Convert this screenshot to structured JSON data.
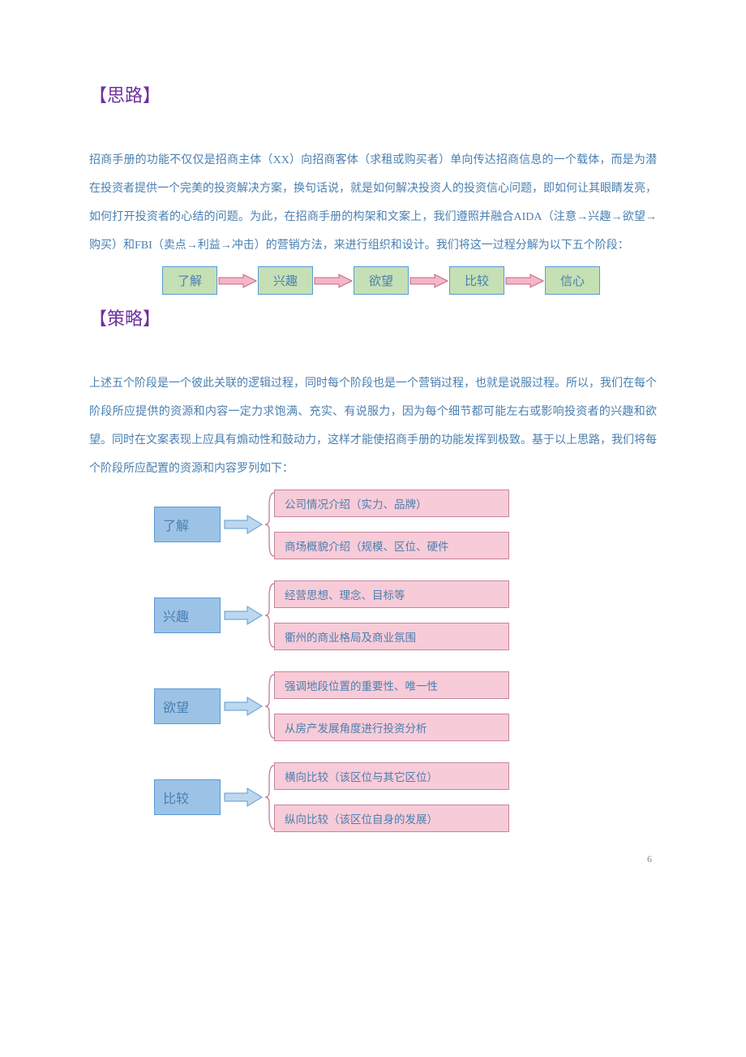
{
  "colors": {
    "heading": "#7030a0",
    "body_text": "#4a7fb0",
    "green_box_fill": "#c5e0b4",
    "green_box_border": "#5b9bd5",
    "blue_box_fill": "#9cc3e6",
    "blue_box_border": "#5b9bd5",
    "pink_box_fill": "#f8cbd8",
    "pink_box_border": "#c5859b",
    "flow_arrow_outline": "#c8647e",
    "flow_arrow_fill": "#f4b6c8",
    "stage_arrow_outline": "#5b9bd5",
    "stage_arrow_fill": "#bdd7ee",
    "bracket": "#c5859b"
  },
  "fonts": {
    "heading_family": "KaiTi",
    "body_family": "SimSun",
    "heading_size_pt": 16,
    "body_size_pt": 10.5
  },
  "section1": {
    "heading": "【思路】",
    "paragraph": "招商手册的功能不仅仅是招商主体（XX）向招商客体（求租或购买者）单向传达招商信息的一个载体，而是为潜在投资者提供一个完美的投资解决方案，换句话说，就是如何解决投资人的投资信心问题，即如何让其眼睛发亮，如何打开投资者的心结的问题。为此，在招商手册的构架和文案上，我们遵照并融合AIDA（注意→兴趣→欲望→购买）和FBI（卖点→利益→冲击）的营销方法，来进行组织和设计。我们将这一过程分解为以下五个阶段："
  },
  "flow": {
    "type": "flowchart",
    "boxes": [
      "了解",
      "兴趣",
      "欲望",
      "比较",
      "信心"
    ]
  },
  "section2": {
    "heading": "【策略】",
    "paragraph": "上述五个阶段是一个彼此关联的逻辑过程，同时每个阶段也是一个营销过程，也就是说服过程。所以，我们在每个阶段所应提供的资源和内容一定力求饱满、充实、有说服力，因为每个细节都可能左右或影响投资者的兴趣和欲望。同时在文案表现上应具有煽动性和鼓动力，这样才能使招商手册的功能发挥到极致。基于以上思路，我们将每个阶段所应配置的资源和内容罗列如下："
  },
  "stages": {
    "type": "tree",
    "items": [
      {
        "label": "了解",
        "details": [
          "公司情况介绍（实力、品牌）",
          "商场概貌介绍（规模、区位、硬件"
        ]
      },
      {
        "label": "兴趣",
        "details": [
          "经营思想、理念、目标等",
          "衢州的商业格局及商业氛围"
        ]
      },
      {
        "label": "欲望",
        "details": [
          "强调地段位置的重要性、唯一性",
          "从房产发展角度进行投资分析"
        ]
      },
      {
        "label": "比较",
        "details": [
          "横向比较（该区位与其它区位）",
          "纵向比较（该区位自身的发展）"
        ]
      }
    ]
  },
  "page_number": "6"
}
